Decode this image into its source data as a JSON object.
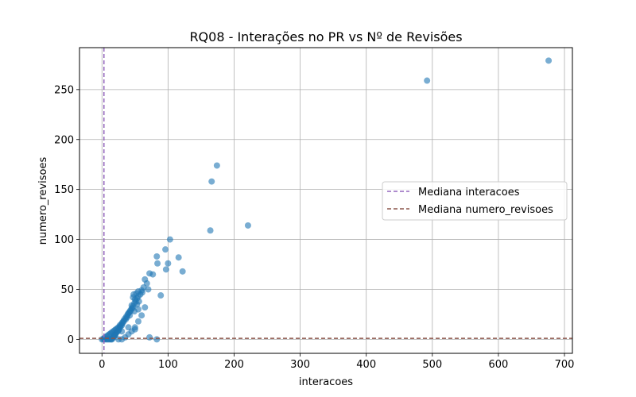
{
  "chart_data": {
    "type": "scatter",
    "title": "RQ08 - Interações no PR vs Nº de Revisões",
    "xlabel": "interacoes",
    "ylabel": "numero_revisoes",
    "xlim": [
      -34,
      712
    ],
    "ylim": [
      -14,
      292
    ],
    "xticks": [
      0,
      100,
      200,
      300,
      400,
      500,
      600,
      700
    ],
    "yticks": [
      0,
      50,
      100,
      150,
      200,
      250
    ],
    "grid": true,
    "legend_position": "center-right",
    "point_color": "#1f77b4",
    "series": [
      {
        "values": [
          [
            676,
            279
          ],
          [
            492,
            259
          ],
          [
            174,
            174
          ],
          [
            166,
            158
          ],
          [
            221,
            114
          ],
          [
            164,
            109
          ],
          [
            103,
            100
          ],
          [
            83,
            83
          ],
          [
            116,
            82
          ],
          [
            96,
            90
          ],
          [
            84,
            76
          ],
          [
            100,
            76
          ],
          [
            97,
            70
          ],
          [
            122,
            68
          ],
          [
            72,
            66
          ],
          [
            77,
            65
          ],
          [
            65,
            60
          ],
          [
            68,
            56
          ],
          [
            63,
            52
          ],
          [
            70,
            50
          ],
          [
            60,
            49
          ],
          [
            55,
            48
          ],
          [
            52,
            46
          ],
          [
            48,
            45
          ],
          [
            47,
            42
          ],
          [
            50,
            40
          ],
          [
            56,
            38
          ],
          [
            53,
            35
          ],
          [
            45,
            34
          ],
          [
            46,
            31
          ],
          [
            55,
            30
          ],
          [
            49,
            28
          ],
          [
            43,
            28
          ],
          [
            40,
            26
          ],
          [
            42,
            24
          ],
          [
            38,
            22
          ],
          [
            36,
            20
          ],
          [
            33,
            18
          ],
          [
            31,
            16
          ],
          [
            30,
            14
          ],
          [
            28,
            13
          ],
          [
            27,
            12
          ],
          [
            26,
            10
          ],
          [
            25,
            9
          ],
          [
            24,
            8
          ],
          [
            22,
            7
          ],
          [
            21,
            6
          ],
          [
            20,
            5
          ],
          [
            19,
            4
          ],
          [
            18,
            3
          ],
          [
            17,
            2
          ],
          [
            16,
            1
          ],
          [
            15,
            0
          ],
          [
            14,
            0
          ],
          [
            12,
            0
          ],
          [
            10,
            0
          ],
          [
            8,
            0
          ],
          [
            6,
            0
          ],
          [
            4,
            0
          ],
          [
            2,
            0
          ],
          [
            0,
            0
          ],
          [
            3,
            1
          ],
          [
            5,
            2
          ],
          [
            7,
            3
          ],
          [
            9,
            4
          ],
          [
            11,
            5
          ],
          [
            13,
            6
          ],
          [
            15,
            7
          ],
          [
            17,
            8
          ],
          [
            19,
            9
          ],
          [
            21,
            10
          ],
          [
            23,
            11
          ],
          [
            25,
            12
          ],
          [
            27,
            14
          ],
          [
            29,
            15
          ],
          [
            31,
            17
          ],
          [
            33,
            19
          ],
          [
            35,
            21
          ],
          [
            37,
            23
          ],
          [
            39,
            25
          ],
          [
            41,
            27
          ],
          [
            43,
            29
          ],
          [
            45,
            31
          ],
          [
            47,
            33
          ],
          [
            49,
            36
          ],
          [
            51,
            38
          ],
          [
            53,
            41
          ],
          [
            55,
            43
          ],
          [
            58,
            45
          ],
          [
            61,
            47
          ],
          [
            25,
            0
          ],
          [
            30,
            0
          ],
          [
            35,
            2
          ],
          [
            40,
            5
          ],
          [
            45,
            8
          ],
          [
            50,
            12
          ],
          [
            55,
            18
          ],
          [
            60,
            24
          ],
          [
            65,
            32
          ],
          [
            89,
            44
          ],
          [
            72,
            2
          ],
          [
            83,
            0
          ],
          [
            50,
            10
          ],
          [
            40,
            12
          ],
          [
            30,
            8
          ],
          [
            20,
            4
          ]
        ]
      }
    ],
    "median_lines": [
      {
        "name": "Mediana interacoes",
        "axis": "x",
        "value": 3,
        "color": "#9467bd"
      },
      {
        "name": "Mediana numero_revisoes",
        "axis": "y",
        "value": 1,
        "color": "#8c564b"
      }
    ]
  }
}
